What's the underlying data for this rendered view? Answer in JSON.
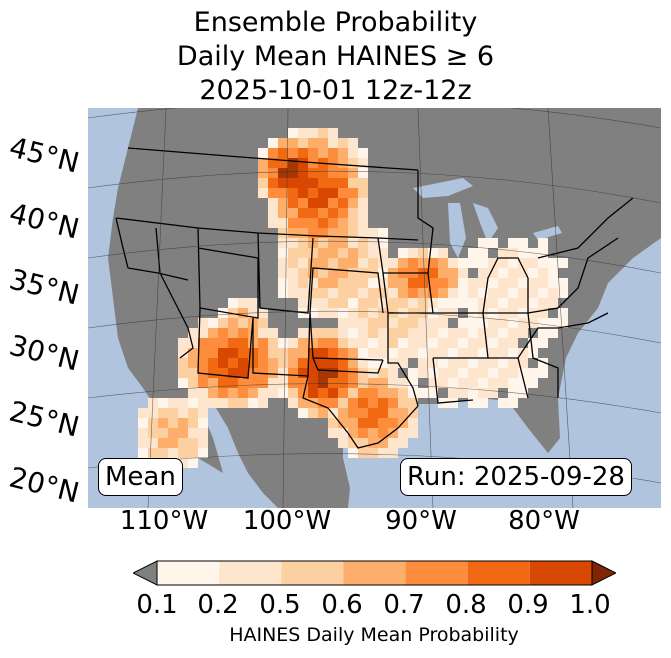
{
  "title": {
    "line1": "Ensemble Probability",
    "line2": "Daily Mean HAINES ≥ 6",
    "line3": "2025-10-01 12z-12z"
  },
  "map": {
    "lat_labels": [
      "45°N",
      "40°N",
      "35°N",
      "30°N",
      "25°N",
      "20°N"
    ],
    "lon_labels": [
      "110°W",
      "100°W",
      "90°W",
      "80°W"
    ],
    "stat_label": "Mean",
    "run_label": "Run: 2025-09-28",
    "colors": {
      "ocean": "#b0c4de",
      "land_below": "#808080",
      "lakes": "#b0c4de"
    }
  },
  "colorbar": {
    "label": "HAINES Daily Mean Probability",
    "ticks": [
      "0.1",
      "0.2",
      "0.5",
      "0.6",
      "0.7",
      "0.8",
      "0.9",
      "1.0"
    ],
    "colors": [
      "#fff5eb",
      "#fee6ce",
      "#fdd0a2",
      "#fdae6b",
      "#fd8d3c",
      "#f16913",
      "#d94801",
      "#a63603"
    ],
    "under_color": "#808080",
    "over_color": "#7f2704"
  }
}
